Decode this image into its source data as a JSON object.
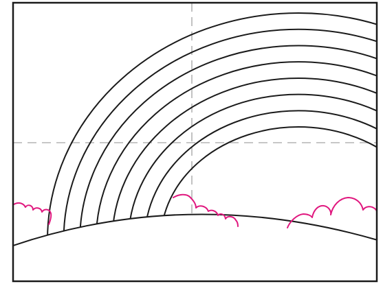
{
  "drawing": {
    "subject": "rainbow",
    "stroke_colors": {
      "frame": "#1a1a1a",
      "rainbow": "#1a1a1a",
      "hill": "#1a1a1a",
      "guides": "#b3b3b3",
      "clouds": "#e0177e"
    },
    "guides": {
      "style": "dashed",
      "orientation": [
        "vertical",
        "horizontal"
      ]
    },
    "rainbow_band_lines": 8,
    "cloud_groups": 3
  }
}
